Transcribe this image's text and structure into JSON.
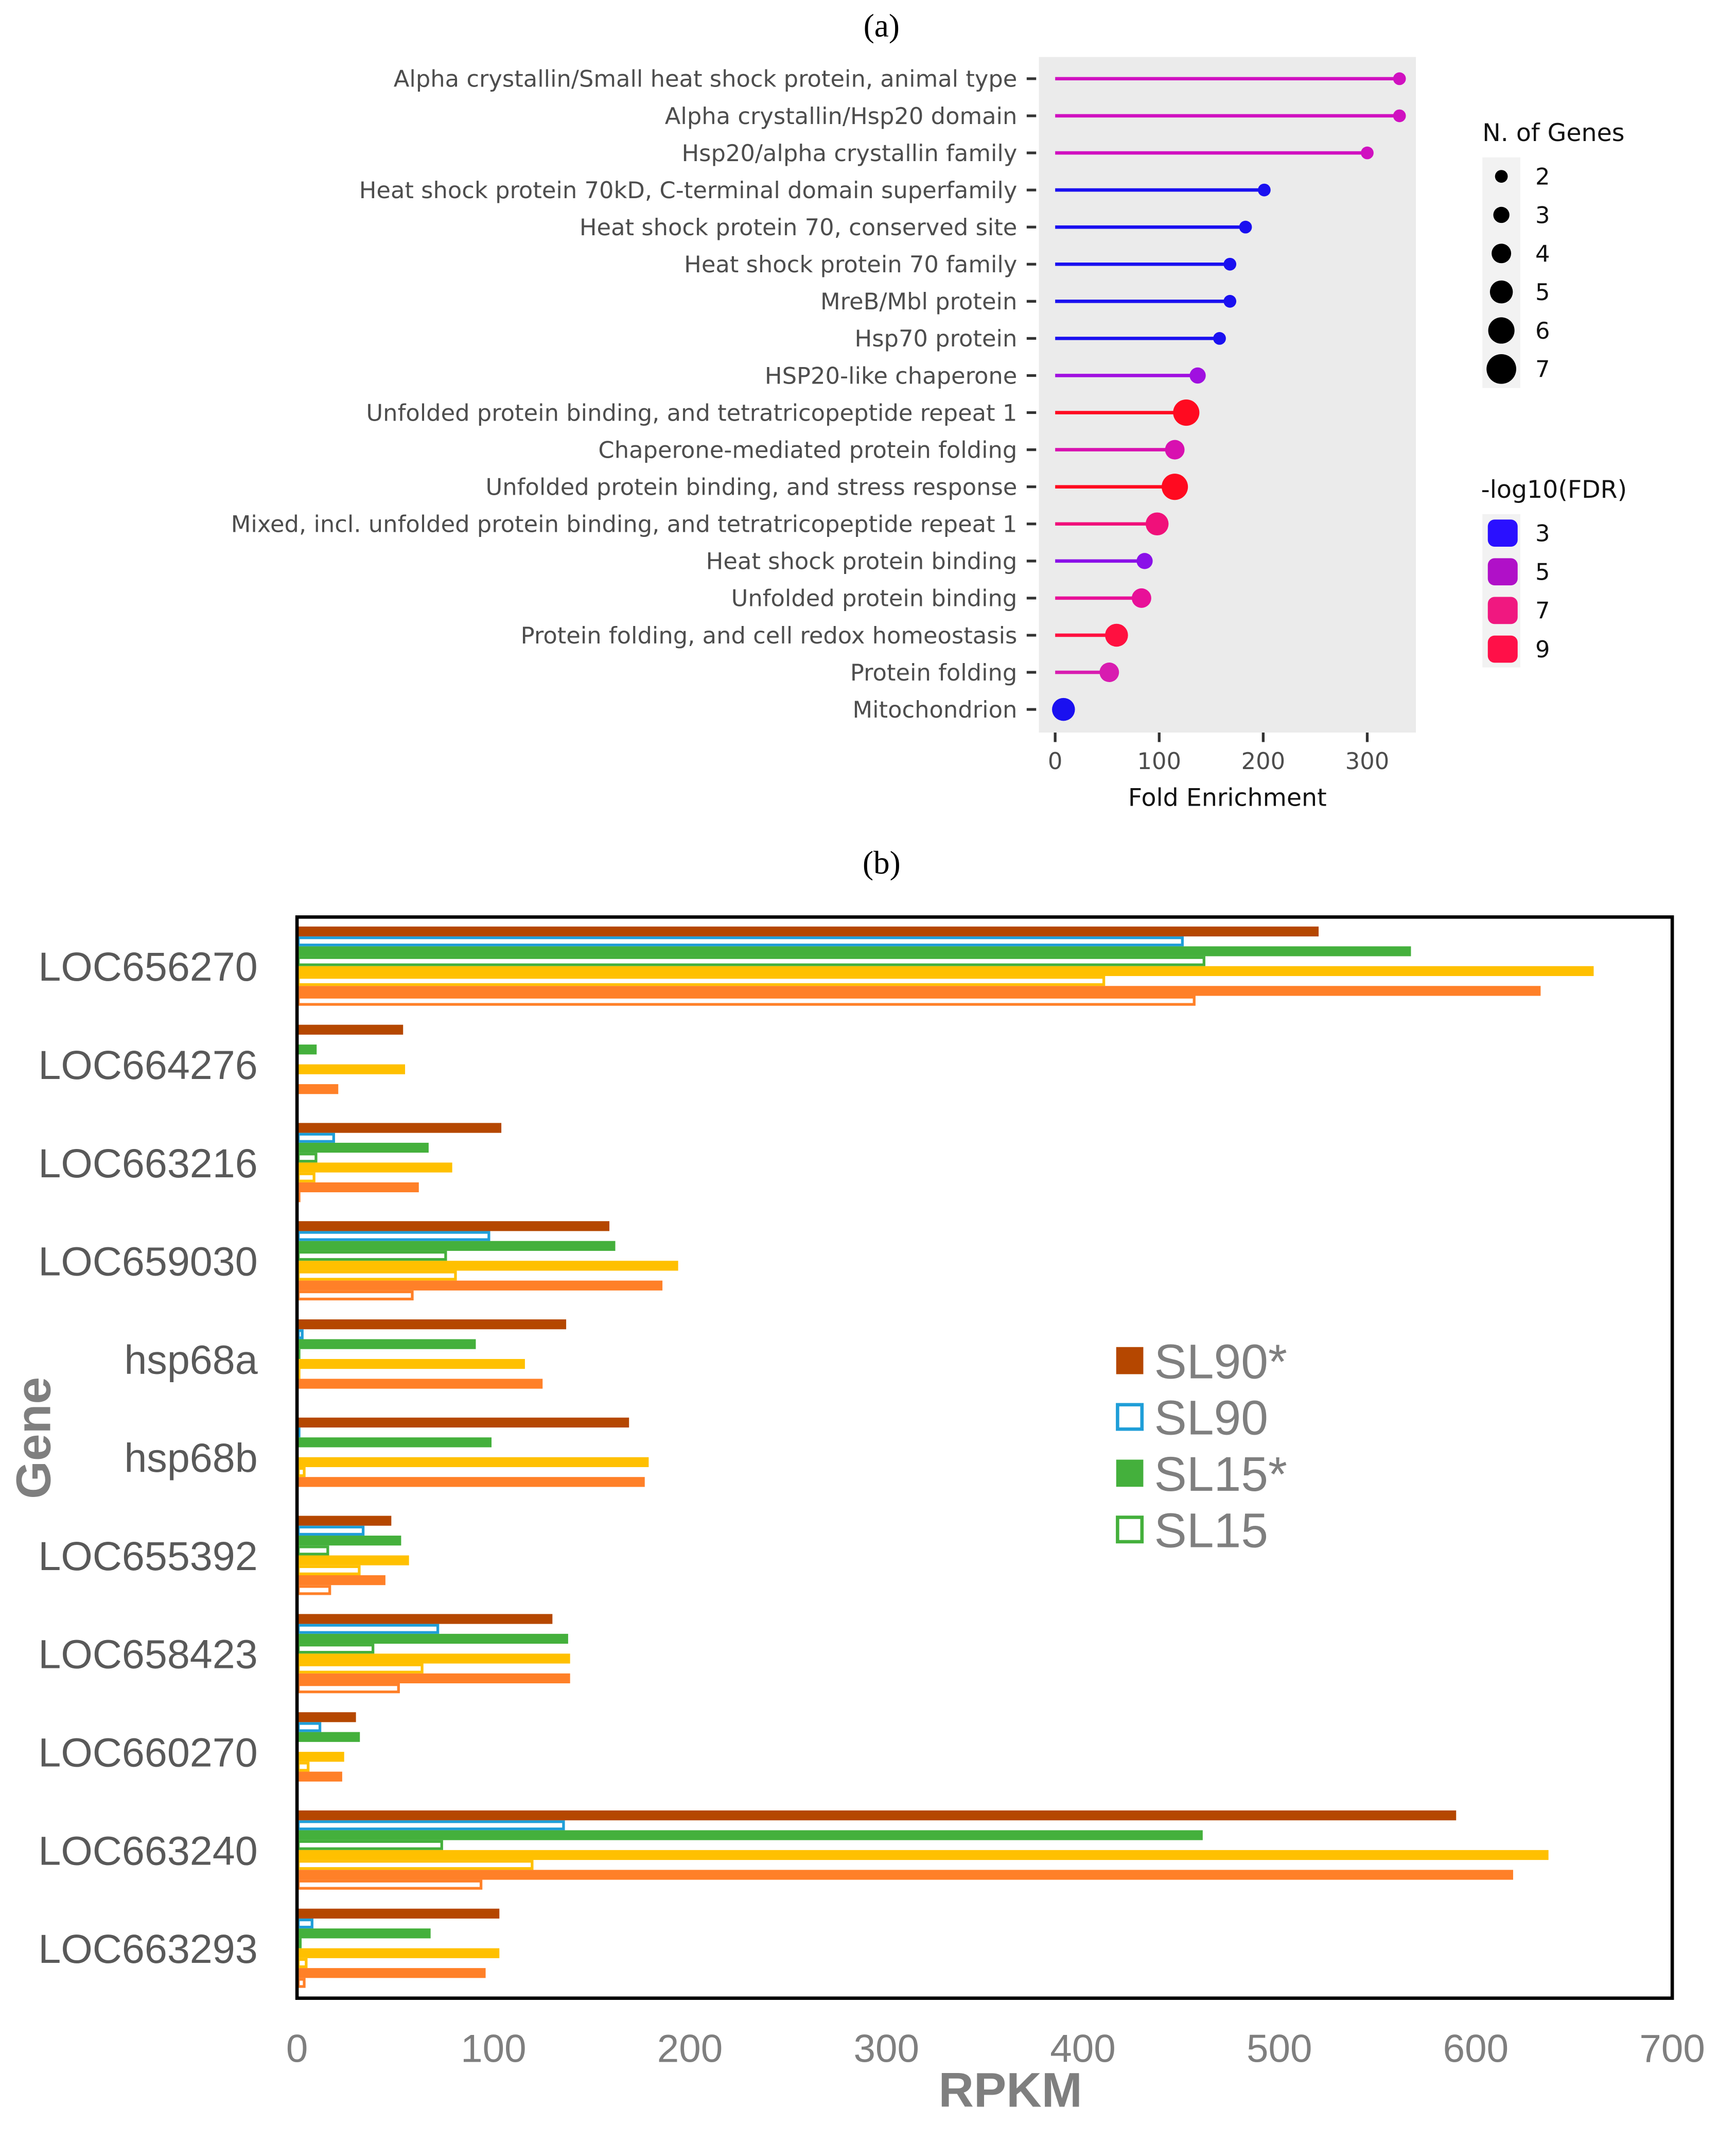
{
  "chart_data": [
    {
      "type": "lollipop",
      "panel_label": "(a)",
      "xlabel": "Fold Enrichment",
      "xlim": [
        -10,
        345
      ],
      "xticks": [
        "0",
        "100",
        "200",
        "300"
      ],
      "xtick_values": [
        0,
        100,
        200,
        300
      ],
      "categories": [
        "Alpha crystallin/Small heat shock protein, animal type",
        "Alpha crystallin/Hsp20 domain",
        "Hsp20/alpha crystallin family",
        "Heat shock protein 70kD, C-terminal domain superfamily",
        "Heat shock protein 70, conserved site",
        "Heat shock protein 70 family",
        "MreB/Mbl protein",
        "Hsp70 protein",
        "HSP20-like chaperone",
        "Unfolded protein binding, and tetratricopeptide repeat 1",
        "Chaperone-mediated protein folding",
        "Unfolded protein binding, and stress response",
        "Mixed, incl. unfolded protein binding, and tetratricopeptide repeat 1",
        "Heat shock protein binding",
        "Unfolded protein binding",
        "Protein folding, and cell redox homeostasis",
        "Protein folding",
        "Mitochondrion"
      ],
      "fold_enrichment": [
        331,
        331,
        300,
        201,
        183,
        168,
        168,
        158,
        137,
        126,
        115,
        115,
        98,
        86,
        83,
        59,
        52,
        8
      ],
      "n_genes": [
        2,
        2,
        2,
        2,
        2,
        2,
        2,
        2,
        3,
        6,
        4,
        6,
        5,
        3,
        4,
        5,
        4,
        5
      ],
      "neg_log10_fdr": [
        5.5,
        5.5,
        5.5,
        3,
        3,
        3,
        3,
        3,
        4.5,
        9,
        6,
        9,
        7.5,
        4,
        7,
        8.5,
        6.5,
        3
      ],
      "colors": [
        "#d010c0",
        "#d010c0",
        "#d010c0",
        "#1a10f0",
        "#1a10f0",
        "#1a10f0",
        "#1a10f0",
        "#1a10f0",
        "#a010e0",
        "#ff0a20",
        "#d810b0",
        "#ff0a20",
        "#f0107a",
        "#8a10e8",
        "#e81098",
        "#ff1040",
        "#d81cb0",
        "#1a10f0"
      ],
      "legend_size": {
        "title": "N. of Genes",
        "labels": [
          "2",
          "3",
          "4",
          "5",
          "6",
          "7"
        ]
      },
      "legend_color": {
        "title": "-log10(FDR)",
        "labels": [
          "3",
          "5",
          "7",
          "9"
        ],
        "colors": [
          "#2a10ff",
          "#b010c8",
          "#f01880",
          "#ff1048"
        ]
      },
      "grid": false
    },
    {
      "type": "bar",
      "orientation": "horizontal",
      "panel_label": "(b)",
      "xlabel": "RPKM",
      "ylabel": "Gene",
      "xlim": [
        0,
        700
      ],
      "xticks": [
        "0",
        "100",
        "200",
        "300",
        "400",
        "500",
        "600",
        "700"
      ],
      "categories": [
        "LOC656270",
        "LOC664276",
        "LOC663216",
        "LOC659030",
        "hsp68a",
        "hsp68b",
        "LOC655392",
        "LOC658423",
        "LOC660270",
        "LOC663240",
        "LOC663293"
      ],
      "series": [
        {
          "name": "SL90*",
          "color": "#b54700",
          "filled": true,
          "values": [
            520,
            54,
            104,
            159,
            137,
            169,
            48,
            130,
            30,
            590,
            103
          ]
        },
        {
          "name": "SL90",
          "color": "#1f9ed8",
          "filled": false,
          "values": [
            451,
            0,
            19,
            98,
            3,
            1,
            34,
            72,
            12,
            136,
            8
          ]
        },
        {
          "name": "SL15*",
          "color": "#44b03c",
          "filled": true,
          "values": [
            567,
            10,
            67,
            162,
            91,
            99,
            53,
            138,
            32,
            461,
            68
          ]
        },
        {
          "name": "SL15",
          "color": "#44b03c",
          "filled": false,
          "values": [
            462,
            0,
            10,
            76,
            1,
            0,
            16,
            39,
            0,
            74,
            2
          ]
        },
        {
          "name": "",
          "color": "#ffc000",
          "filled": true,
          "values": [
            660,
            55,
            79,
            194,
            116,
            179,
            57,
            139,
            24,
            637,
            103
          ]
        },
        {
          "name": "",
          "color": "#ffc000",
          "filled": false,
          "values": [
            411,
            0,
            9,
            81,
            1,
            4,
            32,
            64,
            6,
            120,
            5
          ]
        },
        {
          "name": "",
          "color": "#ff8028",
          "filled": true,
          "values": [
            633,
            21,
            62,
            186,
            125,
            177,
            45,
            139,
            23,
            619,
            96
          ]
        },
        {
          "name": "",
          "color": "#ff8028",
          "filled": false,
          "values": [
            457,
            0,
            1,
            59,
            0,
            0,
            17,
            52,
            0,
            94,
            4
          ]
        }
      ],
      "legend": [
        "SL90*",
        "SL90",
        "SL15*",
        "SL15"
      ],
      "grid": false
    }
  ]
}
